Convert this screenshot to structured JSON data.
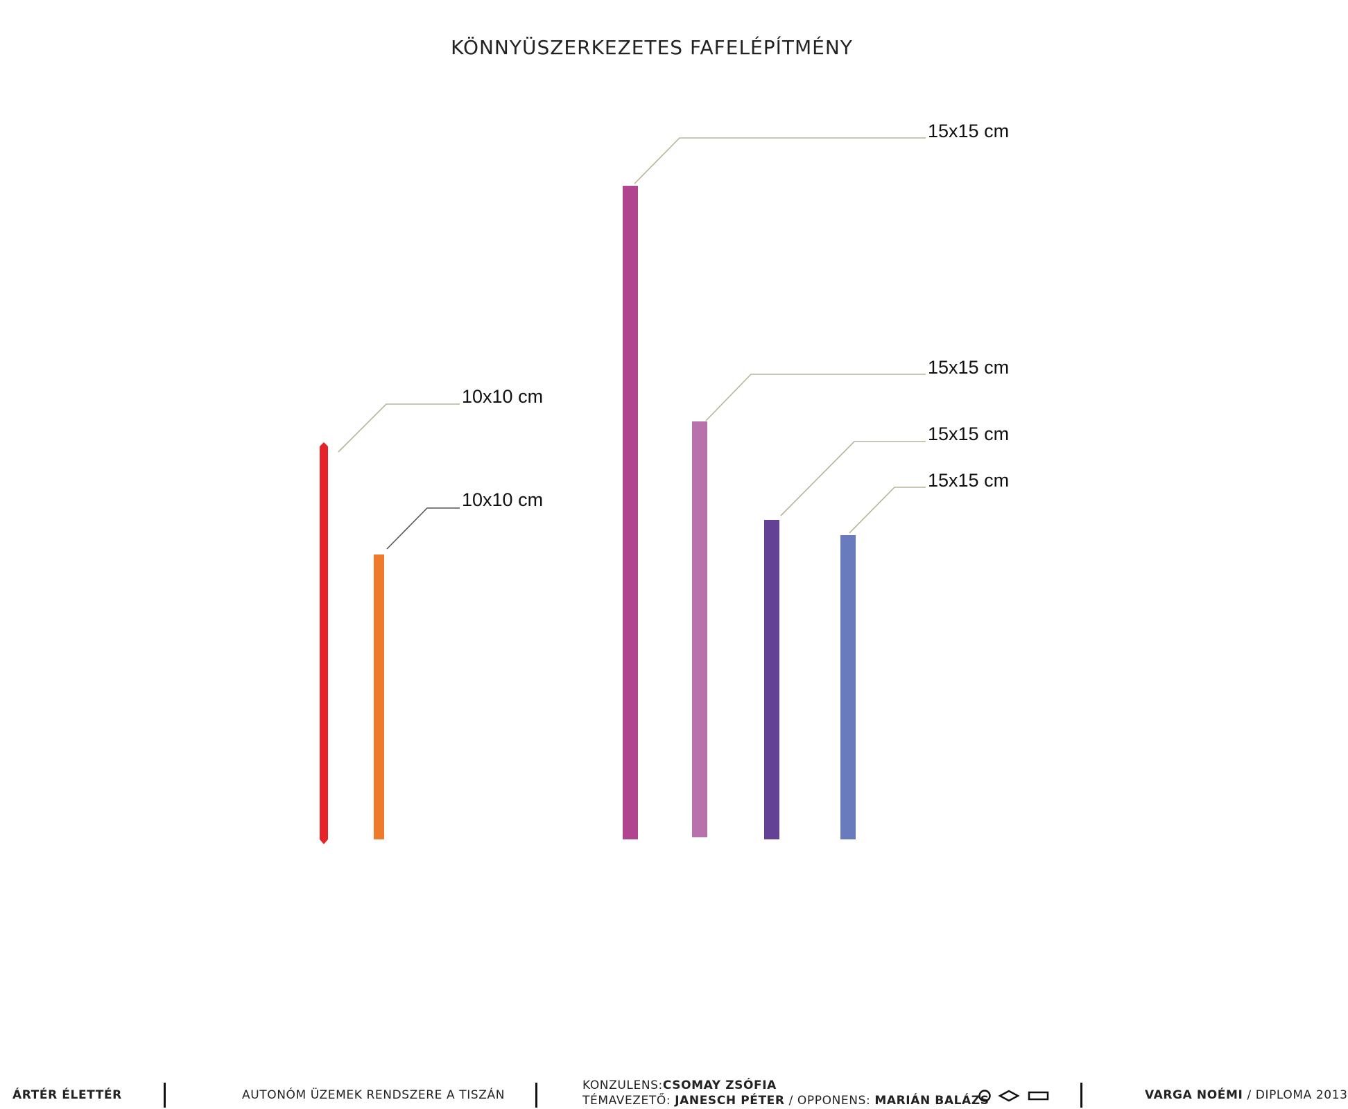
{
  "title": "KÖNNYÜSZERKEZETES FAFELÉPÍTMÉNY",
  "members": [
    {
      "label": "10x10 cm",
      "color": "#e52329"
    },
    {
      "label": "10x10 cm",
      "color": "#ee7a2b"
    },
    {
      "label": "15x15 cm",
      "color": "#b0448f"
    },
    {
      "label": "15x15 cm",
      "color": "#b771ab"
    },
    {
      "label": "15x15 cm",
      "color": "#634194"
    },
    {
      "label": "15x15 cm",
      "color": "#6a7bbd"
    }
  ],
  "footer": {
    "project": "ÁRTÉR ÉLETTÉR",
    "subtitle": "AUTONÓM ÜZEMEK RENDSZERE A TISZÁN",
    "konzulens_label": "KONZULENS:",
    "konzulens_name": "CSOMAY ZSÓFIA",
    "temavezeto_label": "TÉMAVEZETŐ:",
    "temavezeto_name": "JANESCH PÉTER",
    "opponens_label": "/ OPPONENS:",
    "opponens_name": "MARIÁN BALÁZS",
    "author": "VARGA NOÉMI",
    "diploma": "/ DIPLOMA 2013"
  }
}
